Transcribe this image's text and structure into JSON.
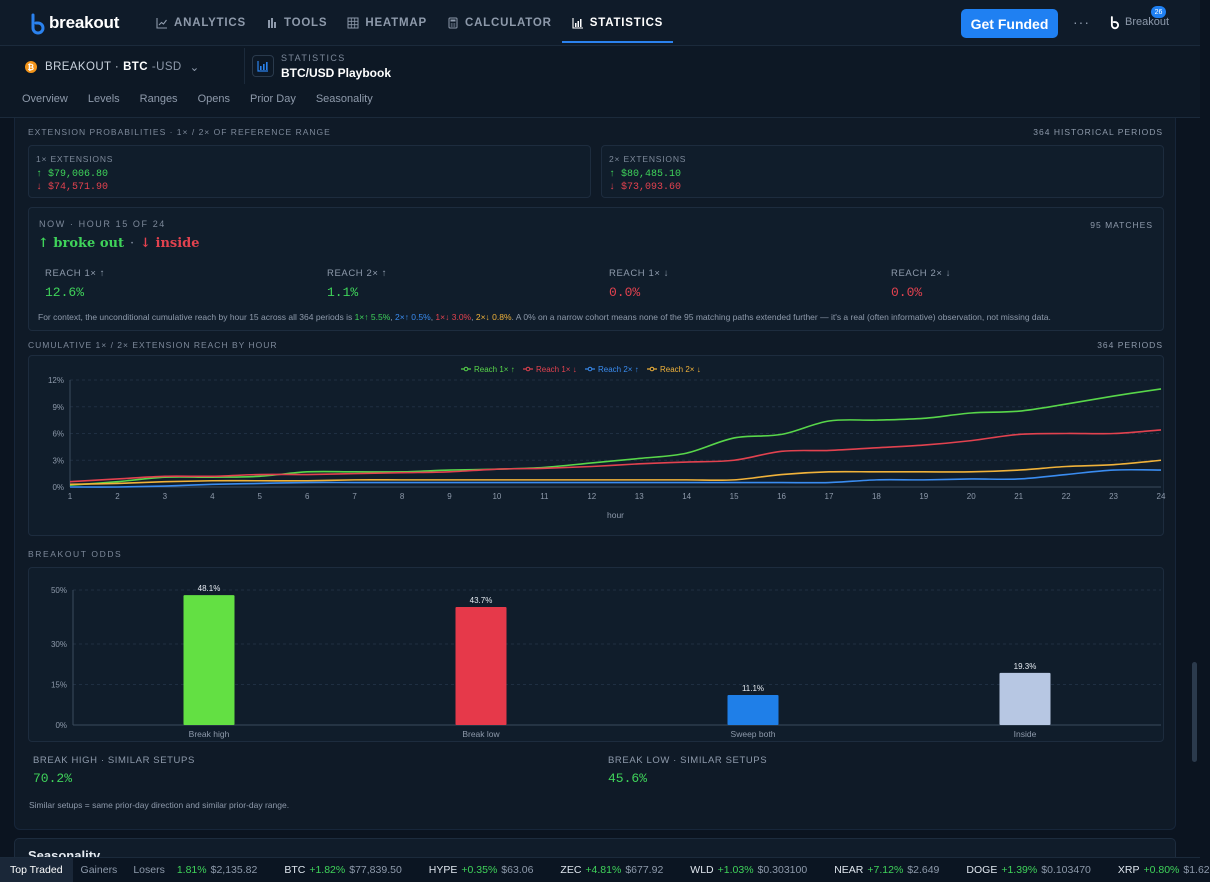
{
  "brand": {
    "name": "breakout",
    "mini": "Breakout"
  },
  "nav": [
    {
      "label": "ANALYTICS",
      "icon": "chart-line-icon",
      "active": false
    },
    {
      "label": "TOOLS",
      "icon": "bars-icon",
      "active": false
    },
    {
      "label": "HEATMAP",
      "icon": "grid-icon",
      "active": false
    },
    {
      "label": "CALCULATOR",
      "icon": "calculator-icon",
      "active": false
    },
    {
      "label": "STATISTICS",
      "icon": "bar-chart-icon",
      "active": true
    }
  ],
  "header": {
    "cta": "Get Funded",
    "more": "···"
  },
  "instrument": {
    "prefix": "BREAKOUT ·",
    "base": "BTC",
    "quote": "-USD"
  },
  "page": {
    "eyebrow": "STATISTICS",
    "title": "BTC/USD Playbook"
  },
  "tabs": [
    "Overview",
    "Levels",
    "Ranges",
    "Opens",
    "Prior Day",
    "Seasonality"
  ],
  "extensions": {
    "title": "EXTENSION PROBABILITIES · 1× / 2× OF REFERENCE RANGE",
    "periods": "364 HISTORICAL PERIODS",
    "one_x": {
      "label": "1× EXTENSIONS",
      "up": "↑ $79,006.80",
      "down": "↓ $74,571.90"
    },
    "two_x": {
      "label": "2× EXTENSIONS",
      "up": "↑ $80,485.10",
      "down": "↓ $73,093.60"
    }
  },
  "now": {
    "head": "NOW · HOUR 15 OF 24",
    "matches": "95 MATCHES",
    "status_up": "↑ broke out",
    "sep": "·",
    "status_down": "↓ inside",
    "reach": [
      {
        "label": "REACH 1× ↑",
        "value": "12.6%",
        "color": "#3fd35a"
      },
      {
        "label": "REACH 2× ↑",
        "value": "1.1%",
        "color": "#3fd35a"
      },
      {
        "label": "REACH 1× ↓",
        "value": "0.0%",
        "color": "#e2424f"
      },
      {
        "label": "REACH 2× ↓",
        "value": "0.0%",
        "color": "#e2424f"
      }
    ],
    "footnote": {
      "pre": "For context, the unconditional cumulative reach by hour 15 across all 364 periods is ",
      "g": "1×↑ 5.5%",
      "b": "2×↑ 0.5%",
      "r": "1×↓ 3.0%",
      "y": "2×↓ 0.8%",
      "post": ". A 0% on a narrow cohort means none of the 95 matching paths extended further — it's a real (often informative) observation, not missing data.",
      "comma": ", "
    }
  },
  "cumulative": {
    "title": "CUMULATIVE 1× / 2× EXTENSION REACH BY HOUR",
    "periods": "364 PERIODS"
  },
  "odds": {
    "title": "BREAKOUT ODDS",
    "similar": [
      {
        "label": "BREAK HIGH · SIMILAR SETUPS",
        "value": "70.2%"
      },
      {
        "label": "BREAK LOW · SIMILAR SETUPS",
        "value": "45.6%"
      }
    ],
    "note": "Similar setups = same prior-day direction and similar prior-day range."
  },
  "seasonality": {
    "title": "Seasonality"
  },
  "ticker": {
    "tabs": [
      "Top Traded",
      "Gainers",
      "Losers"
    ],
    "items": [
      {
        "sym": "",
        "chg": "1.81%",
        "px": "$2,135.82"
      },
      {
        "sym": "BTC",
        "chg": "+1.82%",
        "px": "$77,839.50"
      },
      {
        "sym": "HYPE",
        "chg": "+0.35%",
        "px": "$63.06"
      },
      {
        "sym": "ZEC",
        "chg": "+4.81%",
        "px": "$677.92"
      },
      {
        "sym": "WLD",
        "chg": "+1.03%",
        "px": "$0.303100"
      },
      {
        "sym": "NEAR",
        "chg": "+7.12%",
        "px": "$2.649"
      },
      {
        "sym": "DOGE",
        "chg": "+1.39%",
        "px": "$0.103470"
      },
      {
        "sym": "XRP",
        "chg": "+0.80%",
        "px": "$1.62"
      }
    ],
    "badge": "26"
  },
  "chart_data": [
    {
      "type": "line",
      "title": "CUMULATIVE 1× / 2× EXTENSION REACH BY HOUR",
      "xlabel": "hour",
      "ylabel": "",
      "x": [
        1,
        2,
        3,
        4,
        5,
        6,
        7,
        8,
        9,
        10,
        11,
        12,
        13,
        14,
        15,
        16,
        17,
        18,
        19,
        20,
        21,
        22,
        23,
        24
      ],
      "yticks": [
        "0%",
        "3%",
        "6%",
        "9%",
        "12%"
      ],
      "ylim": [
        0,
        12
      ],
      "legend_position": "top-center",
      "grid": true,
      "series": [
        {
          "name": "Reach 1× ↑",
          "color": "#58d64a",
          "values": [
            0.2,
            0.6,
            1.1,
            1.1,
            1.2,
            1.7,
            1.7,
            1.7,
            1.9,
            2.0,
            2.2,
            2.7,
            3.2,
            3.8,
            5.5,
            5.9,
            7.4,
            7.5,
            7.7,
            8.3,
            8.5,
            9.3,
            10.2,
            11.0
          ]
        },
        {
          "name": "Reach 1× ↓",
          "color": "#e2424f",
          "values": [
            0.6,
            0.9,
            1.2,
            1.2,
            1.4,
            1.4,
            1.5,
            1.6,
            1.7,
            2.0,
            2.1,
            2.3,
            2.6,
            2.8,
            3.0,
            4.0,
            4.1,
            4.4,
            4.7,
            5.2,
            5.9,
            6.0,
            6.0,
            6.4
          ]
        },
        {
          "name": "Reach 2× ↑",
          "color": "#3a8cf0",
          "values": [
            0.0,
            0.0,
            0.1,
            0.3,
            0.4,
            0.5,
            0.5,
            0.5,
            0.5,
            0.5,
            0.5,
            0.5,
            0.5,
            0.5,
            0.5,
            0.5,
            0.5,
            0.8,
            0.8,
            0.9,
            0.9,
            1.4,
            1.9,
            1.9
          ]
        },
        {
          "name": "Reach 2× ↓",
          "color": "#f0b23a",
          "values": [
            0.3,
            0.4,
            0.6,
            0.7,
            0.7,
            0.7,
            0.8,
            0.8,
            0.8,
            0.8,
            0.8,
            0.8,
            0.8,
            0.8,
            0.8,
            1.4,
            1.7,
            1.7,
            1.7,
            1.7,
            1.9,
            2.3,
            2.5,
            3.0
          ]
        }
      ]
    },
    {
      "type": "bar",
      "title": "BREAKOUT ODDS",
      "categories": [
        "Break high",
        "Break low",
        "Sweep both",
        "Inside"
      ],
      "values": [
        48.1,
        43.7,
        11.1,
        19.3
      ],
      "labels": [
        "48.1%",
        "43.7%",
        "11.1%",
        "19.3%"
      ],
      "colors": [
        "#63e043",
        "#e6394a",
        "#1f7fe8",
        "#b7c7e3"
      ],
      "yticks": [
        "0%",
        "15%",
        "30%",
        "50%"
      ],
      "ylim": [
        0,
        50
      ],
      "grid": true
    }
  ]
}
